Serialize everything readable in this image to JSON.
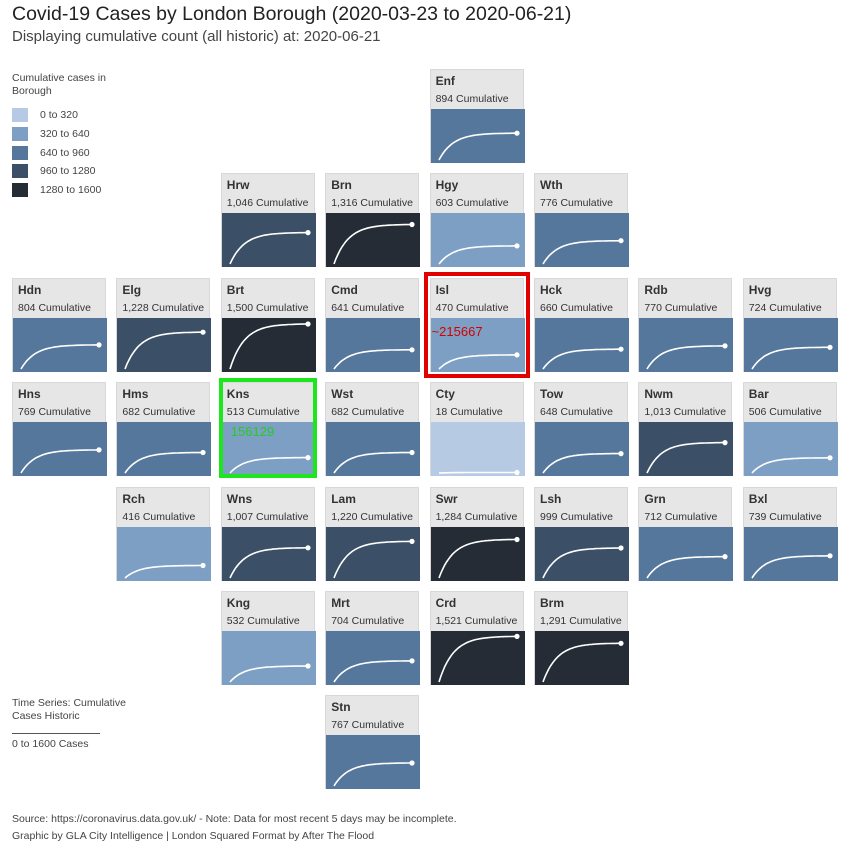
{
  "title": "Covid-19 Cases by London Borough (2020-03-23 to 2020-06-21)",
  "subtitle": "Displaying cumulative count (all historic) at: 2020-06-21",
  "legend": {
    "title": "Cumulative cases in Borough",
    "items": [
      {
        "label": "0 to 320",
        "color": "#b6cbe3"
      },
      {
        "label": "320 to 640",
        "color": "#7e9fc4"
      },
      {
        "label": "640 to 960",
        "color": "#56779c"
      },
      {
        "label": "960 to 1280",
        "color": "#3b4f66"
      },
      {
        "label": "1280 to 1600",
        "color": "#252c36"
      }
    ]
  },
  "time_series_note": {
    "title": "Time Series: Cumulative Cases Historic",
    "range_label": "0 to 1600 Cases"
  },
  "footer": {
    "source": "Source: https://coronavirus.data.gov.uk/ - Note: Data for most recent 5 days may be incomplete.",
    "credit": "Graphic by GLA City Intelligence | London Squared Format by After The Flood"
  },
  "annotations": {
    "isl_label": "~215667",
    "kns_label": "156129",
    "isl_color": "#d40000",
    "kns_color": "#22cc22"
  },
  "chart_data": {
    "type": "heatmap",
    "title": "Covid-19 Cases by London Borough (2020-03-23 to 2020-06-21)",
    "subtitle": "Displaying cumulative count (all historic) at: 2020-06-21",
    "value_suffix": "Cumulative",
    "color_scale_range": [
      0,
      1600
    ],
    "sparkline_range": [
      0,
      1600
    ],
    "grid": false,
    "legend_position": "top-left",
    "boroughs": [
      {
        "code": "Enf",
        "value": 894,
        "count_label": "894",
        "row": 0,
        "col": 4
      },
      {
        "code": "Hrw",
        "value": 1046,
        "count_label": "1,046",
        "row": 1,
        "col": 2
      },
      {
        "code": "Brn",
        "value": 1316,
        "count_label": "1,316",
        "row": 1,
        "col": 3
      },
      {
        "code": "Hgy",
        "value": 603,
        "count_label": "603",
        "row": 1,
        "col": 4
      },
      {
        "code": "Wth",
        "value": 776,
        "count_label": "776",
        "row": 1,
        "col": 5
      },
      {
        "code": "Hdn",
        "value": 804,
        "count_label": "804",
        "row": 2,
        "col": 0
      },
      {
        "code": "Elg",
        "value": 1228,
        "count_label": "1,228",
        "row": 2,
        "col": 1
      },
      {
        "code": "Brt",
        "value": 1500,
        "count_label": "1,500",
        "row": 2,
        "col": 2
      },
      {
        "code": "Cmd",
        "value": 641,
        "count_label": "641",
        "row": 2,
        "col": 3
      },
      {
        "code": "Isl",
        "value": 470,
        "count_label": "470",
        "row": 2,
        "col": 4
      },
      {
        "code": "Hck",
        "value": 660,
        "count_label": "660",
        "row": 2,
        "col": 5
      },
      {
        "code": "Rdb",
        "value": 770,
        "count_label": "770",
        "row": 2,
        "col": 6
      },
      {
        "code": "Hvg",
        "value": 724,
        "count_label": "724",
        "row": 2,
        "col": 7
      },
      {
        "code": "Hns",
        "value": 769,
        "count_label": "769",
        "row": 3,
        "col": 0
      },
      {
        "code": "Hms",
        "value": 682,
        "count_label": "682",
        "row": 3,
        "col": 1
      },
      {
        "code": "Kns",
        "value": 513,
        "count_label": "513",
        "row": 3,
        "col": 2
      },
      {
        "code": "Wst",
        "value": 682,
        "count_label": "682",
        "row": 3,
        "col": 3
      },
      {
        "code": "Cty",
        "value": 18,
        "count_label": "18",
        "row": 3,
        "col": 4
      },
      {
        "code": "Tow",
        "value": 648,
        "count_label": "648",
        "row": 3,
        "col": 5
      },
      {
        "code": "Nwm",
        "value": 1013,
        "count_label": "1,013",
        "row": 3,
        "col": 6
      },
      {
        "code": "Bar",
        "value": 506,
        "count_label": "506",
        "row": 3,
        "col": 7
      },
      {
        "code": "Rch",
        "value": 416,
        "count_label": "416",
        "row": 4,
        "col": 1
      },
      {
        "code": "Wns",
        "value": 1007,
        "count_label": "1,007",
        "row": 4,
        "col": 2
      },
      {
        "code": "Lam",
        "value": 1220,
        "count_label": "1,220",
        "row": 4,
        "col": 3
      },
      {
        "code": "Swr",
        "value": 1284,
        "count_label": "1,284",
        "row": 4,
        "col": 4
      },
      {
        "code": "Lsh",
        "value": 999,
        "count_label": "999",
        "row": 4,
        "col": 5
      },
      {
        "code": "Grn",
        "value": 712,
        "count_label": "712",
        "row": 4,
        "col": 6
      },
      {
        "code": "Bxl",
        "value": 739,
        "count_label": "739",
        "row": 4,
        "col": 7
      },
      {
        "code": "Kng",
        "value": 532,
        "count_label": "532",
        "row": 5,
        "col": 2
      },
      {
        "code": "Mrt",
        "value": 704,
        "count_label": "704",
        "row": 5,
        "col": 3
      },
      {
        "code": "Crd",
        "value": 1521,
        "count_label": "1,521",
        "row": 5,
        "col": 4
      },
      {
        "code": "Brm",
        "value": 1291,
        "count_label": "1,291",
        "row": 5,
        "col": 5
      },
      {
        "code": "Stn",
        "value": 767,
        "count_label": "767",
        "row": 6,
        "col": 3
      }
    ]
  }
}
